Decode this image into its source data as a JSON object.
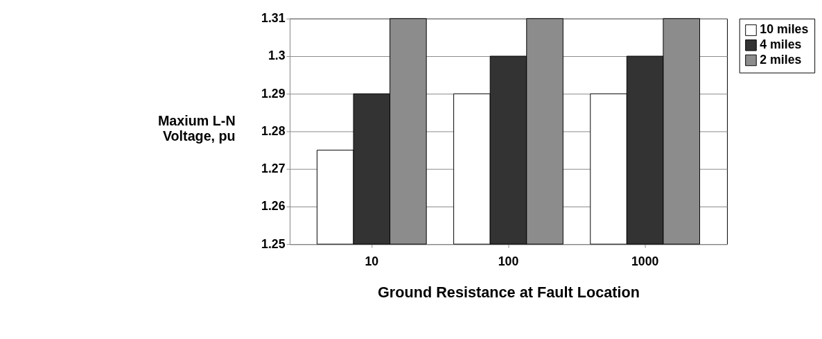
{
  "chart_data": {
    "type": "bar",
    "xlabel": "Ground Resistance at Fault Location",
    "ylabel": "Maxium L-N\nVoltage, pu",
    "categories": [
      "10",
      "100",
      "1000"
    ],
    "series": [
      {
        "name": "10 miles",
        "color": "#ffffff",
        "values": [
          1.275,
          1.29,
          1.29
        ]
      },
      {
        "name": "4 miles",
        "color": "#333333",
        "values": [
          1.29,
          1.3,
          1.3
        ]
      },
      {
        "name": "2 miles",
        "color": "#8c8c8c",
        "values": [
          1.31,
          1.31,
          1.31
        ]
      }
    ],
    "ylim": [
      1.25,
      1.31
    ],
    "yticks": [
      1.25,
      1.26,
      1.27,
      1.28,
      1.29,
      1.3,
      1.31
    ],
    "grid": "y",
    "legend": "right"
  }
}
